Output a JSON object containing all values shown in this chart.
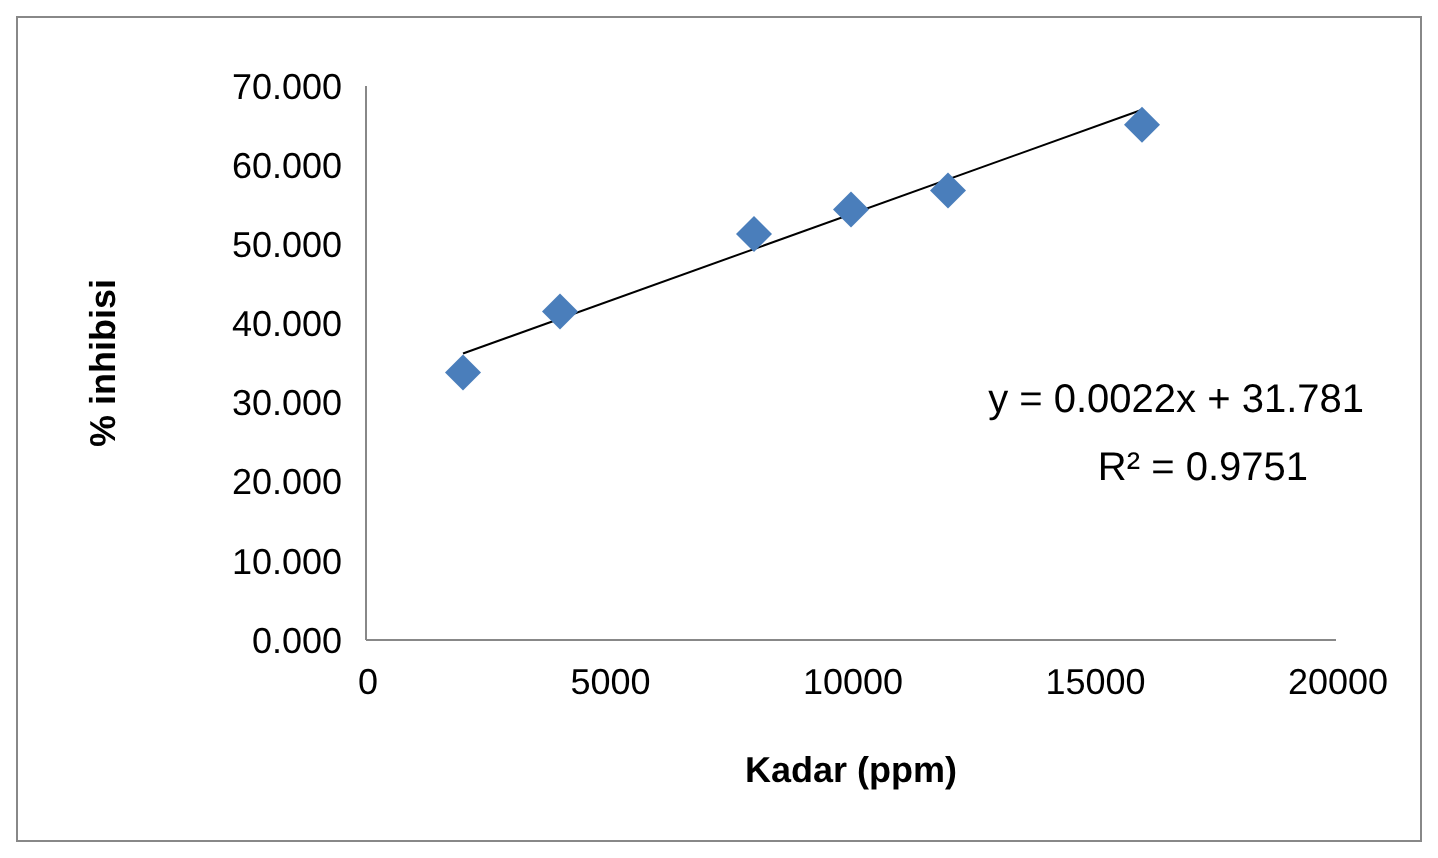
{
  "chart_data": {
    "type": "scatter",
    "xlabel": "Kadar (ppm)",
    "ylabel": "% inhibisi",
    "x": [
      2000,
      4000,
      8000,
      10000,
      12000,
      16000
    ],
    "series": [
      {
        "type": "scatter",
        "color": "#4a7ebb",
        "values": [
          33.8,
          41.5,
          51.3,
          54.4,
          56.8,
          65.1
        ],
        "marker": "diamond"
      },
      {
        "type": "line",
        "color": "#000000",
        "x": [
          2000,
          16000
        ],
        "values": [
          36.2,
          67.0
        ],
        "marker": "none"
      }
    ],
    "xlim": [
      0,
      20000
    ],
    "xticks": [
      0,
      5000,
      10000,
      15000,
      20000
    ],
    "ylim": [
      0,
      70
    ],
    "yticks": [
      {
        "value": 0,
        "label": "0.000"
      },
      {
        "value": 10,
        "label": "10.000"
      },
      {
        "value": 20,
        "label": "20.000"
      },
      {
        "value": 30,
        "label": "30.000"
      },
      {
        "value": 40,
        "label": "40.000"
      },
      {
        "value": 50,
        "label": "50.000"
      },
      {
        "value": 60,
        "label": "60.000"
      },
      {
        "value": 70,
        "label": "70.000"
      }
    ],
    "annotations": [
      "y = 0.0022x + 31.781",
      "R² = 0.9751"
    ],
    "grid": false,
    "legend": false
  }
}
